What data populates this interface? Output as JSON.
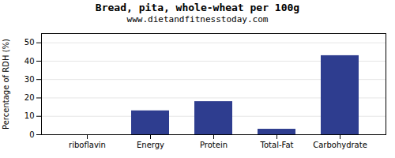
{
  "chart_data": {
    "type": "bar",
    "title": "Bread, pita, whole-wheat per 100g",
    "subtitle": "www.dietandfitnesstoday.com",
    "categories": [
      "riboflavin",
      "Energy",
      "Protein",
      "Total-Fat",
      "Carbohydrate"
    ],
    "values": [
      0.0,
      13.0,
      18.0,
      3.0,
      43.0
    ],
    "color": "#2e3d8f",
    "ylabel": "Percentage of RDH (%)",
    "ylim": [
      0,
      55
    ],
    "yticks": [
      0,
      10,
      20,
      30,
      40,
      50
    ],
    "grid": true
  }
}
